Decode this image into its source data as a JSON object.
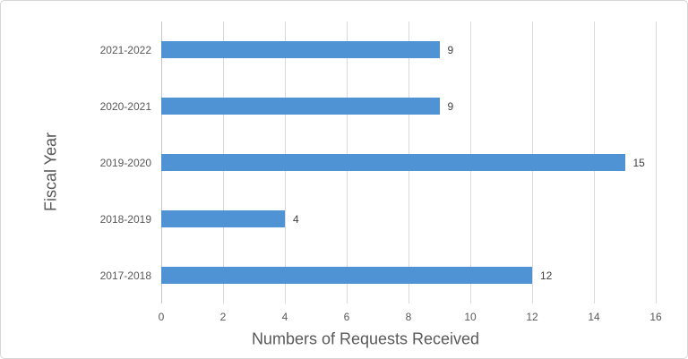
{
  "chart_data": {
    "type": "bar",
    "orientation": "horizontal",
    "title": "",
    "xlabel": "Numbers of Requests Received",
    "ylabel": "Fiscal Year",
    "categories": [
      "2021-2022",
      "2020-2021",
      "2019-2020",
      "2018-2019",
      "2017-2018"
    ],
    "values": [
      9,
      9,
      15,
      4,
      12
    ],
    "data_labels": [
      "9",
      "9",
      "15",
      "4",
      "12"
    ],
    "xlim": [
      0,
      16
    ],
    "xticks": [
      0,
      2,
      4,
      6,
      8,
      10,
      12,
      14,
      16
    ],
    "grid": true,
    "legend": false,
    "colors": {
      "bar": "#4f93d5",
      "gridline": "#d9d9d9",
      "axis_line": "#c6c6c6",
      "tick_label": "#595959",
      "value_label": "#404040",
      "axis_title": "#595959",
      "card_border": "#d6d6d6"
    }
  }
}
